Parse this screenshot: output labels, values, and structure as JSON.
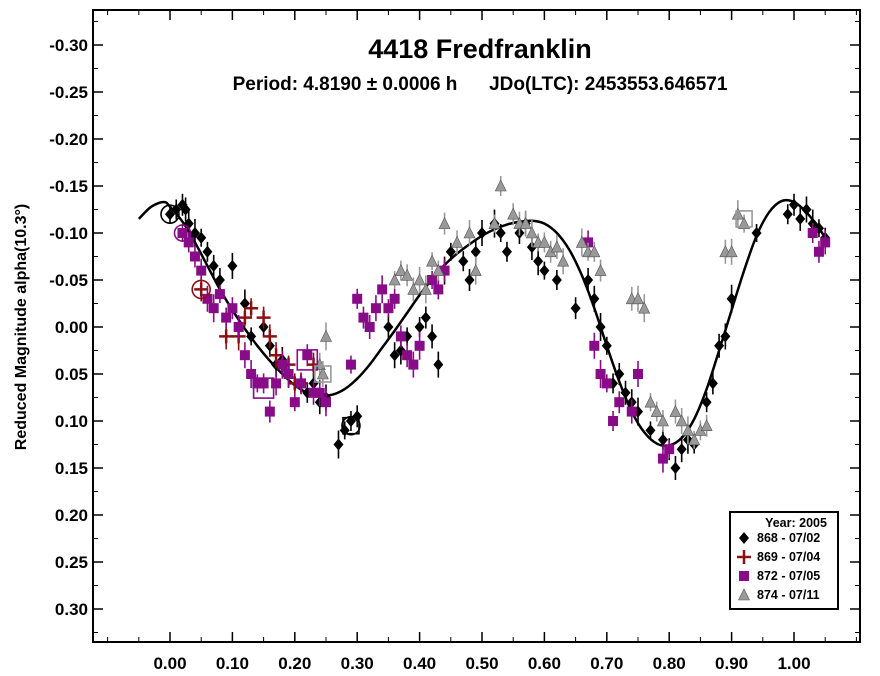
{
  "chart_data": {
    "type": "scatter",
    "title": "4418 Fredfranklin",
    "subtitle": "Period: 4.8190 ± 0.0006 h      JDo(LTC): 2453553.646571",
    "xlabel": "",
    "ylabel": "Reduced Magnitude alpha(10.3°)",
    "xlim": [
      -0.1,
      1.1
    ],
    "ylim": [
      -0.35,
      0.35
    ],
    "y_inverted": true,
    "x_ticks": [
      "0.00",
      "0.10",
      "0.20",
      "0.30",
      "0.40",
      "0.50",
      "0.60",
      "0.70",
      "0.80",
      "0.90",
      "1.00"
    ],
    "y_ticks": [
      "-0.30",
      "-0.25",
      "-0.20",
      "-0.15",
      "-0.10",
      "-0.05",
      "0.00",
      "0.05",
      "0.10",
      "0.15",
      "0.20",
      "0.25",
      "0.30"
    ],
    "grid": false,
    "legend": {
      "placement": "bottom-right",
      "title": "Year: 2005",
      "entries": [
        "868 - 07/02",
        "869 - 07/04",
        "872 - 07/05",
        "874 - 07/11"
      ]
    },
    "fit_curve": {
      "x": [
        -0.05,
        -0.03,
        -0.01,
        0.0,
        0.02,
        0.04,
        0.06,
        0.08,
        0.1,
        0.12,
        0.14,
        0.16,
        0.18,
        0.2,
        0.22,
        0.24,
        0.26,
        0.28,
        0.3,
        0.32,
        0.34,
        0.36,
        0.38,
        0.4,
        0.42,
        0.44,
        0.46,
        0.48,
        0.5,
        0.52,
        0.54,
        0.56,
        0.58,
        0.6,
        0.62,
        0.64,
        0.66,
        0.68,
        0.7,
        0.72,
        0.74,
        0.76,
        0.78,
        0.8,
        0.82,
        0.84,
        0.86,
        0.88,
        0.9,
        0.92,
        0.94,
        0.96,
        0.98,
        1.0,
        1.02,
        1.04,
        1.05
      ],
      "y": [
        -0.115,
        -0.128,
        -0.133,
        -0.128,
        -0.112,
        -0.09,
        -0.065,
        -0.04,
        -0.018,
        0.002,
        0.02,
        0.036,
        0.05,
        0.062,
        0.07,
        0.073,
        0.072,
        0.066,
        0.055,
        0.04,
        0.022,
        0.004,
        -0.015,
        -0.034,
        -0.051,
        -0.066,
        -0.078,
        -0.088,
        -0.097,
        -0.104,
        -0.109,
        -0.112,
        -0.113,
        -0.11,
        -0.1,
        -0.082,
        -0.055,
        -0.02,
        0.02,
        0.058,
        0.09,
        0.112,
        0.124,
        0.126,
        0.118,
        0.098,
        0.066,
        0.025,
        -0.018,
        -0.06,
        -0.097,
        -0.122,
        -0.134,
        -0.133,
        -0.122,
        -0.105,
        -0.095
      ]
    },
    "series": [
      {
        "name": "868 - 07/02",
        "marker": "diamond",
        "color": "#000000",
        "x": [
          0.0,
          0.01,
          0.02,
          0.025,
          0.03,
          0.04,
          0.05,
          0.06,
          0.07,
          0.08,
          0.1,
          0.12,
          0.13,
          0.15,
          0.16,
          0.17,
          0.18,
          0.19,
          0.21,
          0.22,
          0.23,
          0.24,
          0.25,
          0.27,
          0.28,
          0.29,
          0.3,
          0.35,
          0.36,
          0.37,
          0.38,
          0.4,
          0.41,
          0.42,
          0.43,
          0.44,
          0.45,
          0.47,
          0.48,
          0.49,
          0.5,
          0.52,
          0.53,
          0.54,
          0.56,
          0.57,
          0.58,
          0.59,
          0.6,
          0.62,
          0.65,
          0.67,
          0.68,
          0.69,
          0.7,
          0.71,
          0.72,
          0.73,
          0.74,
          0.75,
          0.77,
          0.79,
          0.8,
          0.81,
          0.82,
          0.83,
          0.84,
          0.86,
          0.87,
          0.88,
          0.89,
          0.9,
          0.94,
          0.99,
          1.0,
          1.01,
          1.02,
          1.03,
          1.04,
          1.05
        ],
        "y": [
          -0.12,
          -0.125,
          -0.13,
          -0.125,
          -0.11,
          -0.1,
          -0.095,
          -0.08,
          -0.065,
          -0.05,
          -0.065,
          -0.025,
          0.01,
          0.0,
          0.02,
          0.04,
          0.035,
          0.05,
          0.06,
          0.07,
          0.06,
          0.08,
          0.075,
          0.125,
          0.11,
          0.1,
          0.095,
          0.0,
          0.03,
          0.025,
          0.01,
          0.0,
          -0.01,
          0.01,
          0.04,
          -0.06,
          -0.08,
          -0.07,
          -0.05,
          -0.08,
          -0.1,
          -0.11,
          -0.1,
          -0.08,
          -0.1,
          -0.11,
          -0.085,
          -0.07,
          -0.06,
          -0.05,
          -0.02,
          -0.05,
          -0.03,
          0.0,
          0.02,
          0.06,
          0.05,
          0.07,
          0.08,
          0.09,
          0.11,
          0.12,
          0.13,
          0.15,
          0.13,
          0.12,
          0.125,
          0.08,
          0.06,
          0.02,
          0.01,
          -0.03,
          -0.1,
          -0.12,
          -0.13,
          -0.115,
          -0.125,
          -0.11,
          -0.105,
          -0.095
        ]
      },
      {
        "name": "869 - 07/04",
        "marker": "plus",
        "color": "#8b1010",
        "x": [
          0.05,
          0.09,
          0.11,
          0.12,
          0.13,
          0.15,
          0.16,
          0.17,
          0.18,
          0.19,
          0.2,
          0.21,
          0.23
        ],
        "y": [
          -0.04,
          0.01,
          0.01,
          -0.01,
          -0.02,
          -0.01,
          0.01,
          0.03,
          0.04,
          0.04,
          0.06,
          0.06,
          0.04
        ]
      },
      {
        "name": "872 - 07/05",
        "marker": "square",
        "color": "#880c88",
        "x": [
          0.02,
          0.03,
          0.04,
          0.05,
          0.06,
          0.07,
          0.08,
          0.09,
          0.1,
          0.11,
          0.12,
          0.13,
          0.14,
          0.15,
          0.16,
          0.17,
          0.18,
          0.19,
          0.2,
          0.21,
          0.22,
          0.23,
          0.24,
          0.25,
          0.29,
          0.3,
          0.31,
          0.32,
          0.33,
          0.34,
          0.35,
          0.36,
          0.37,
          0.38,
          0.39,
          0.4,
          0.42,
          0.43,
          0.44,
          0.67,
          0.68,
          0.69,
          0.7,
          0.71,
          0.72,
          0.74,
          0.75,
          0.79,
          0.8,
          1.03,
          1.04,
          1.05
        ],
        "y": [
          -0.1,
          -0.09,
          -0.075,
          -0.06,
          -0.03,
          -0.02,
          -0.035,
          -0.01,
          -0.02,
          0.0,
          0.03,
          0.05,
          0.06,
          0.06,
          0.09,
          0.06,
          0.04,
          0.05,
          0.08,
          0.06,
          0.03,
          0.07,
          0.07,
          0.08,
          0.04,
          -0.03,
          -0.01,
          0.0,
          -0.02,
          -0.04,
          -0.02,
          -0.03,
          0.01,
          0.03,
          0.04,
          0.02,
          -0.05,
          -0.04,
          -0.06,
          -0.09,
          0.02,
          0.05,
          0.06,
          0.1,
          0.08,
          0.09,
          0.05,
          0.14,
          0.13,
          -0.1,
          -0.08,
          -0.09
        ]
      },
      {
        "name": "874 - 07/11",
        "marker": "triangle",
        "color": "#999999",
        "x": [
          0.24,
          0.245,
          0.25,
          0.36,
          0.37,
          0.38,
          0.39,
          0.4,
          0.41,
          0.42,
          0.43,
          0.44,
          0.46,
          0.48,
          0.49,
          0.52,
          0.53,
          0.55,
          0.56,
          0.57,
          0.58,
          0.59,
          0.6,
          0.61,
          0.62,
          0.63,
          0.66,
          0.67,
          0.68,
          0.69,
          0.74,
          0.75,
          0.76,
          0.77,
          0.78,
          0.79,
          0.81,
          0.82,
          0.83,
          0.84,
          0.85,
          0.86,
          0.89,
          0.9,
          0.91,
          0.92
        ],
        "y": [
          0.04,
          0.05,
          0.01,
          -0.05,
          -0.06,
          -0.055,
          -0.04,
          -0.05,
          -0.04,
          -0.07,
          -0.06,
          -0.11,
          -0.09,
          -0.1,
          -0.06,
          -0.11,
          -0.15,
          -0.12,
          -0.11,
          -0.11,
          -0.1,
          -0.09,
          -0.09,
          -0.08,
          -0.085,
          -0.07,
          -0.09,
          -0.08,
          -0.08,
          -0.06,
          -0.03,
          -0.03,
          -0.02,
          0.08,
          0.09,
          0.1,
          0.09,
          0.1,
          0.11,
          0.12,
          0.11,
          0.105,
          -0.08,
          -0.08,
          -0.12,
          -0.11
        ]
      }
    ],
    "open_markers": [
      {
        "series": "868 - 07/02",
        "x": 0.0,
        "y": -0.12
      },
      {
        "series": "868 - 07/02",
        "x": 0.29,
        "y": 0.105
      },
      {
        "series": "869 - 07/04",
        "x": 0.05,
        "y": -0.04
      },
      {
        "series": "872 - 07/05",
        "x": 0.02,
        "y": -0.1
      },
      {
        "series": "872 - 07/05",
        "x": 0.15,
        "y": 0.065
      },
      {
        "series": "872 - 07/05",
        "x": 0.22,
        "y": 0.035
      },
      {
        "series": "874 - 07/11",
        "x": 0.245,
        "y": 0.05
      },
      {
        "series": "874 - 07/11",
        "x": 0.92,
        "y": -0.115
      }
    ]
  }
}
